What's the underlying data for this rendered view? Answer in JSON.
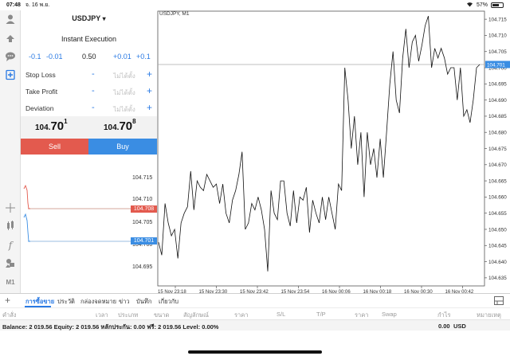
{
  "status": {
    "time": "07:48",
    "date": "จ. 16 พ.ย.",
    "battery": "57%",
    "battery_level": 0.57
  },
  "panel": {
    "symbol": "USDJPY",
    "dropdown_caret": "▾",
    "execution": "Instant Execution",
    "volume": {
      "minus_big": "-0.1",
      "minus_small": "-0.01",
      "value": "0.50",
      "plus_small": "+0.01",
      "plus_big": "+0.1"
    },
    "fields": [
      {
        "label": "Stop Loss",
        "minus": "-",
        "placeholder": "ไม่ได้ตั้ง",
        "plus": "+"
      },
      {
        "label": "Take Profit",
        "minus": "-",
        "placeholder": "ไม่ได้ตั้ง",
        "plus": "+"
      },
      {
        "label": "Deviation",
        "minus": "-",
        "placeholder": "ไม่ได้ตั้ง",
        "plus": "+"
      }
    ],
    "sell_price": {
      "small": "104.",
      "big": "70",
      "sup": "1"
    },
    "buy_price": {
      "small": "104.",
      "big": "70",
      "sup": "8"
    },
    "sell_label": "Sell",
    "buy_label": "Buy"
  },
  "mini_chart": {
    "ticks": [
      "104.715",
      "104.710",
      "104.705",
      "104.700",
      "104.695"
    ],
    "ask_tag": "104.708",
    "bid_tag": "104.701",
    "ask_color": "#e35a4e",
    "bid_color": "#3a8de3"
  },
  "left_toolbar_icons": [
    "account-icon",
    "trade-icon",
    "chat-icon",
    "new-order-icon",
    "crosshair-icon",
    "indicators-icon",
    "function-icon",
    "objects-icon",
    "timeframe-icon"
  ],
  "toolbar_timeframe": "M1",
  "chart_data": {
    "type": "line",
    "title": "USDJPY, M1",
    "xlabel": "",
    "ylabel": "",
    "x_ticks": [
      "15 Nov 23:18",
      "15 Nov 23:30",
      "15 Nov 23:42",
      "15 Nov 23:54",
      "16 Nov 00:06",
      "16 Nov 00:18",
      "16 Nov 00:30",
      "16 Nov 00:42"
    ],
    "y_ticks": [
      "104.715",
      "104.710",
      "104.705",
      "104.700",
      "104.695",
      "104.690",
      "104.685",
      "104.680",
      "104.675",
      "104.670",
      "104.665",
      "104.660",
      "104.655",
      "104.650",
      "104.645",
      "104.640",
      "104.635"
    ],
    "ylim": [
      104.635,
      104.718
    ],
    "current_price": "104.701",
    "current_price_value": 104.701,
    "grid": false,
    "values": [
      104.646,
      104.642,
      104.658,
      104.652,
      104.648,
      104.65,
      104.641,
      104.652,
      104.655,
      104.657,
      104.668,
      104.656,
      104.665,
      104.663,
      104.662,
      104.667,
      104.665,
      104.663,
      104.664,
      104.658,
      104.664,
      104.655,
      104.652,
      104.659,
      104.662,
      104.667,
      104.674,
      104.65,
      104.652,
      104.658,
      104.656,
      104.66,
      104.656,
      104.65,
      104.637,
      104.662,
      104.655,
      104.653,
      104.665,
      104.665,
      104.655,
      104.651,
      104.662,
      104.652,
      104.66,
      104.659,
      104.663,
      104.649,
      104.659,
      104.655,
      104.652,
      104.66,
      104.653,
      104.66,
      104.655,
      104.65,
      104.664,
      104.662,
      104.7,
      104.69,
      104.675,
      104.685,
      104.67,
      104.68,
      104.66,
      104.68,
      104.67,
      104.675,
      104.666,
      104.678,
      104.666,
      104.68,
      104.695,
      104.705,
      104.69,
      104.686,
      104.703,
      104.712,
      104.7,
      104.708,
      104.71,
      104.702,
      104.707,
      104.713,
      104.716,
      104.7,
      104.706,
      104.703,
      104.706,
      104.703,
      104.698,
      104.7,
      104.7,
      104.69,
      104.7,
      104.685,
      104.687,
      104.683,
      104.69,
      104.7,
      104.701
    ]
  },
  "bottom": {
    "add": "+",
    "tabs": [
      "การซื้อขาย",
      "ประวัติ",
      "กล่องจดหมาย",
      "ข่าว",
      "บันทึก",
      "เกี่ยวกับ"
    ],
    "columns": [
      "คำสั่ง",
      "เวลา",
      "ประเภท",
      "ขนาด",
      "สัญลักษณ์",
      "ราคา",
      "S/L",
      "T/P",
      "ราคา",
      "Swap",
      "กำไร",
      "หมายเหตุ"
    ],
    "balance_line": "Balance: 2 019.56 Equity: 2 019.56 หลักประกัน: 0.00 ฟรี: 2 019.56 Level: 0.00%",
    "profit": "0.00",
    "currency": "USD"
  }
}
